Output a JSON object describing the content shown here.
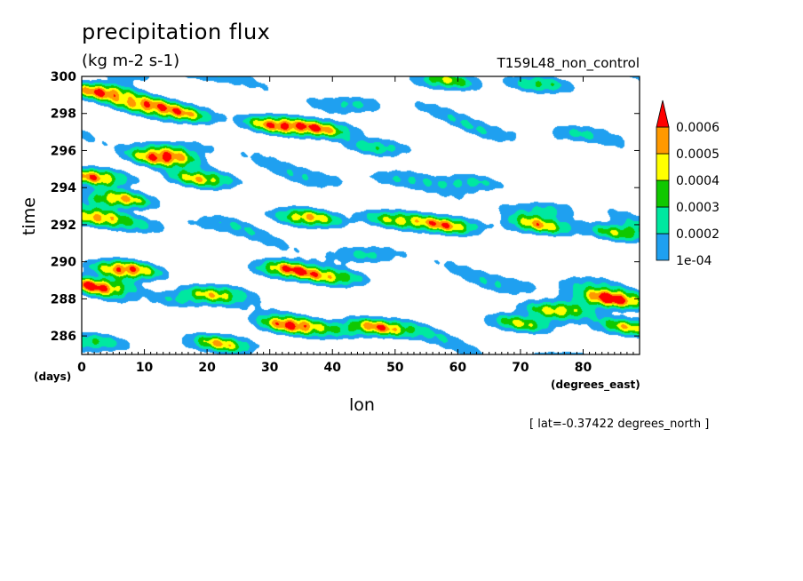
{
  "chart_data": {
    "type": "heatmap",
    "title": "precipitation flux",
    "units": "(kg m-2 s-1)",
    "run_label": "T159L48_non_control",
    "xlabel": "lon",
    "x_unit": "(degrees_east)",
    "ylabel": "time",
    "y_unit": "(days)",
    "footnote": "[ lat=-0.37422 degrees_north ]",
    "xlim": [
      0,
      89
    ],
    "ylim": [
      285,
      300
    ],
    "x_ticks": [
      "0",
      "10",
      "20",
      "30",
      "40",
      "50",
      "60",
      "70",
      "80"
    ],
    "y_ticks": [
      "286",
      "288",
      "290",
      "292",
      "294",
      "296",
      "298",
      "300"
    ],
    "levels": [
      "1e-04",
      "0.0002",
      "0.0003",
      "0.0004",
      "0.0005",
      "0.0006"
    ],
    "level_colors": [
      "#ffffff",
      "#1fa0f0",
      "#00e8a0",
      "#10c800",
      "#ffff00",
      "#ff9900",
      "#ff0000"
    ],
    "colorbar_extend": "max",
    "pattern": "westward-propagating rain bands; intense cells near lon 0-20 days 292-300, lon 30 day 297-298, lon 80-89 days 286-289",
    "cells": [
      {
        "lon": 3,
        "t": 299.2,
        "intensity": 0.00075
      },
      {
        "lon": 10,
        "t": 298.5,
        "intensity": 0.00065
      },
      {
        "lon": 16,
        "t": 298.0,
        "intensity": 0.00055
      },
      {
        "lon": 31,
        "t": 297.4,
        "intensity": 0.0007
      },
      {
        "lon": 38,
        "t": 297.2,
        "intensity": 0.0006
      },
      {
        "lon": 13,
        "t": 295.6,
        "intensity": 0.00075
      },
      {
        "lon": 19,
        "t": 294.5,
        "intensity": 0.0006
      },
      {
        "lon": 2,
        "t": 294.6,
        "intensity": 0.0007
      },
      {
        "lon": 6,
        "t": 293.4,
        "intensity": 0.00065
      },
      {
        "lon": 2,
        "t": 292.4,
        "intensity": 0.0005
      },
      {
        "lon": 36,
        "t": 292.4,
        "intensity": 0.00065
      },
      {
        "lon": 50,
        "t": 292.3,
        "intensity": 0.0005
      },
      {
        "lon": 58,
        "t": 292.0,
        "intensity": 0.00065
      },
      {
        "lon": 73,
        "t": 292.0,
        "intensity": 0.0006
      },
      {
        "lon": 86,
        "t": 291.6,
        "intensity": 0.0005
      },
      {
        "lon": 7,
        "t": 289.6,
        "intensity": 0.0008
      },
      {
        "lon": 3,
        "t": 288.7,
        "intensity": 0.00065
      },
      {
        "lon": 33,
        "t": 289.6,
        "intensity": 0.0007
      },
      {
        "lon": 40,
        "t": 289.2,
        "intensity": 0.0005
      },
      {
        "lon": 84,
        "t": 288.0,
        "intensity": 0.0008
      },
      {
        "lon": 76,
        "t": 287.4,
        "intensity": 0.0006
      },
      {
        "lon": 70,
        "t": 286.7,
        "intensity": 0.0005
      },
      {
        "lon": 87,
        "t": 286.5,
        "intensity": 0.00055
      },
      {
        "lon": 33,
        "t": 286.6,
        "intensity": 0.00065
      },
      {
        "lon": 47,
        "t": 286.5,
        "intensity": 0.0006
      },
      {
        "lon": 22,
        "t": 285.6,
        "intensity": 0.0006
      },
      {
        "lon": 58,
        "t": 299.8,
        "intensity": 0.0005
      },
      {
        "lon": 73,
        "t": 299.6,
        "intensity": 0.0004
      },
      {
        "lon": 2,
        "t": 285.7,
        "intensity": 0.0004
      },
      {
        "lon": 22,
        "t": 288.3,
        "intensity": 0.00045
      },
      {
        "lon": 62,
        "t": 294.3,
        "intensity": 0.0003
      },
      {
        "lon": 47,
        "t": 296.2,
        "intensity": 0.00035
      }
    ]
  }
}
